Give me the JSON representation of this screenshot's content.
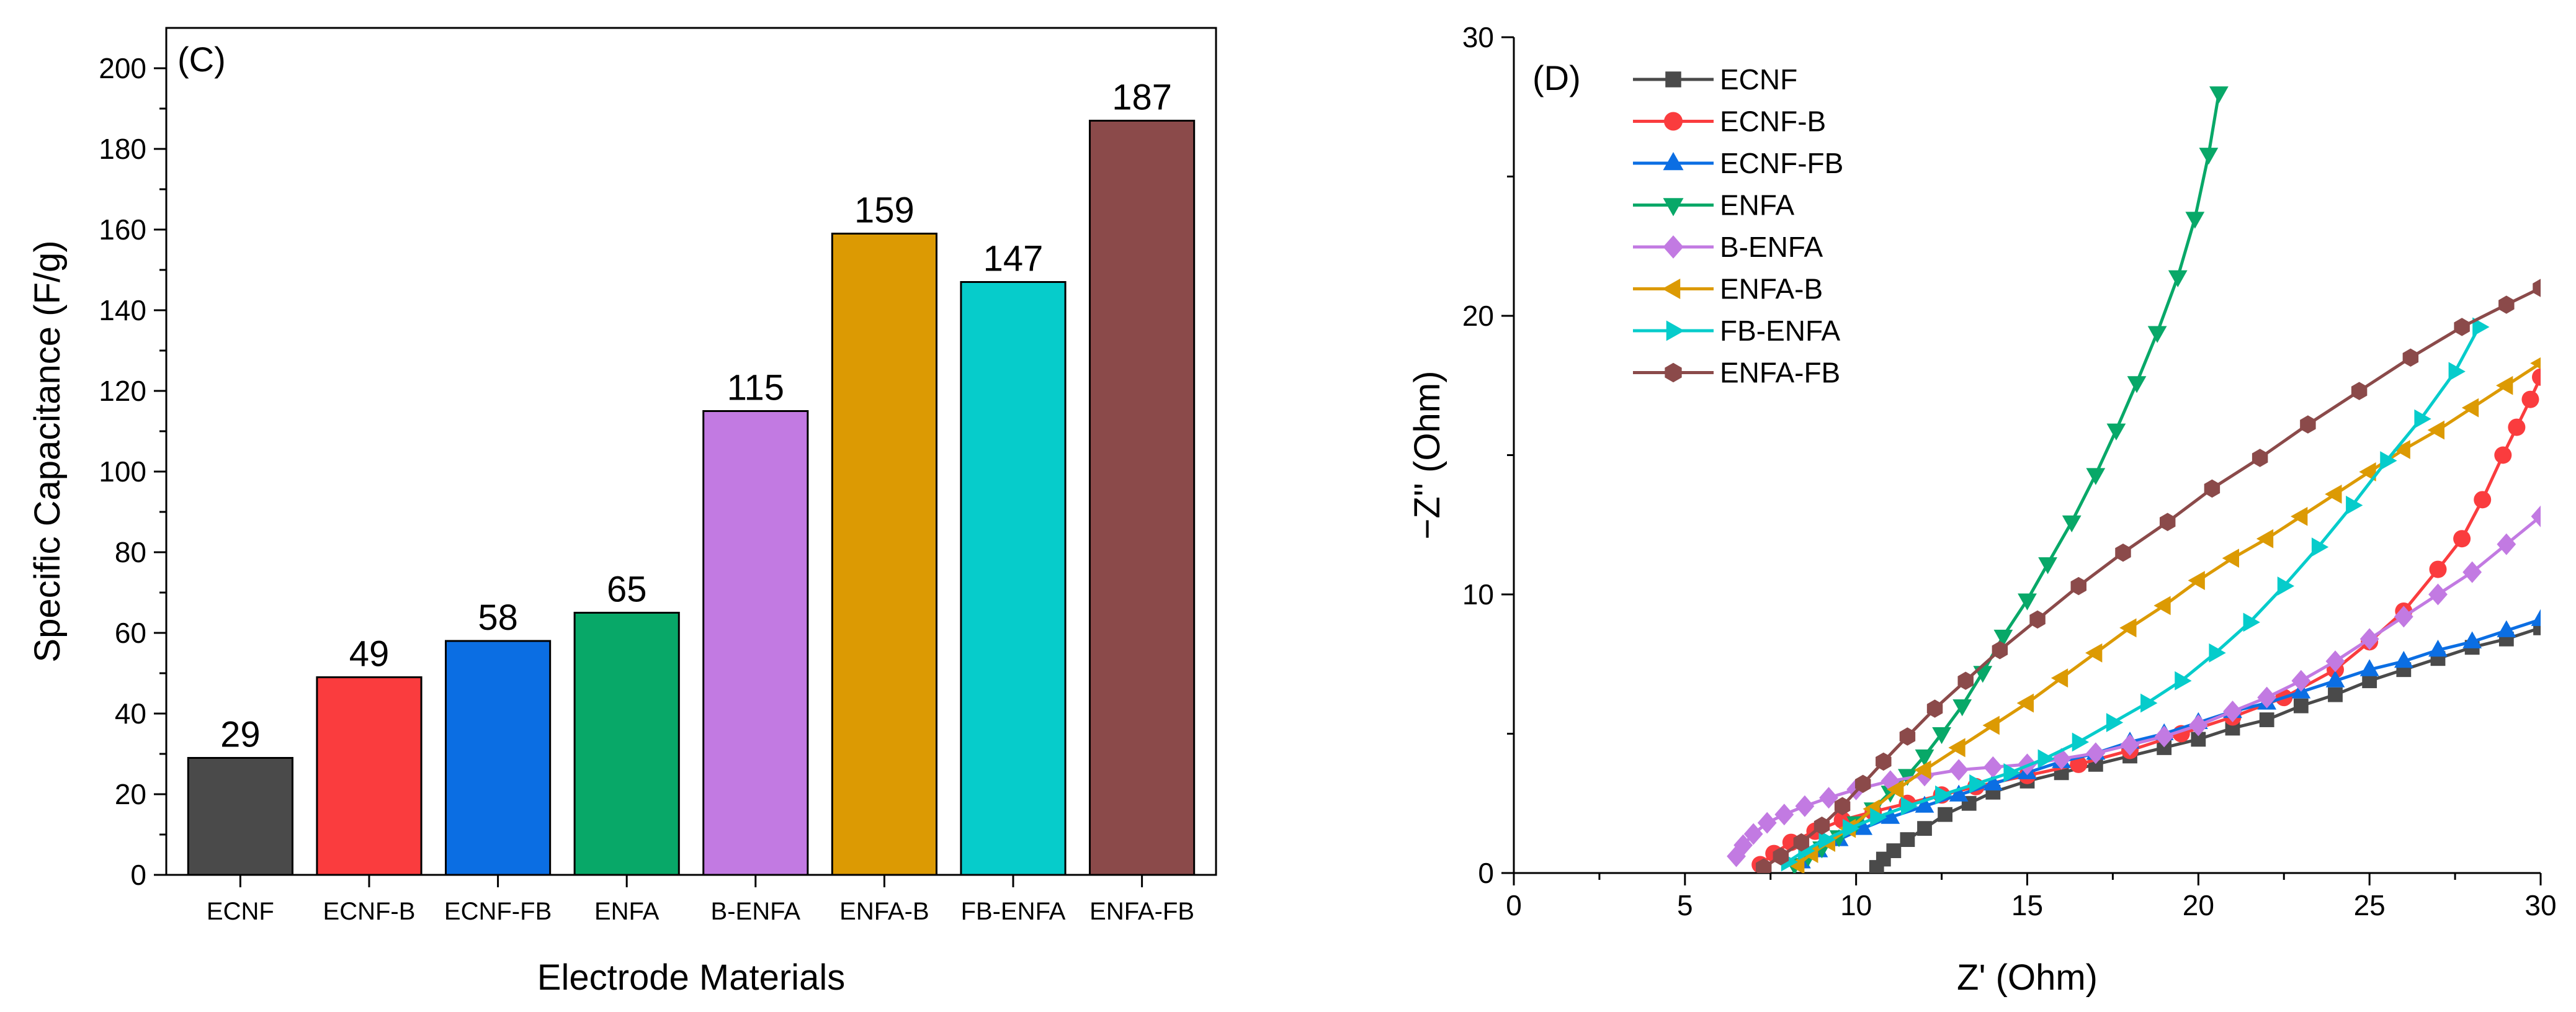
{
  "chart_data": [
    {
      "type": "bar",
      "panel_label": "(C)",
      "title": "",
      "xlabel": "Electrode Materials",
      "ylabel": "Specific Capacitance (F/g)",
      "ylim": [
        0,
        210
      ],
      "yticks": [
        0,
        20,
        40,
        60,
        80,
        100,
        120,
        140,
        160,
        180,
        200
      ],
      "grid": false,
      "categories": [
        "ECNF",
        "ECNF-B",
        "ECNF-FB",
        "ENFA",
        "B-ENFA",
        "ENFA-B",
        "FB-ENFA",
        "ENFA-FB"
      ],
      "values": [
        29,
        49,
        58,
        65,
        115,
        159,
        147,
        187
      ],
      "data_labels": [
        "29",
        "49",
        "58",
        "65",
        "115",
        "159",
        "147",
        "187"
      ],
      "colors": [
        "#4a4a4a",
        "#fa3c3e",
        "#0b6ee3",
        "#08a868",
        "#c27ae2",
        "#dc9a03",
        "#06cccb",
        "#8b4a4a"
      ]
    },
    {
      "type": "line",
      "panel_label": "(D)",
      "title": "",
      "xlabel": "Z' (Ohm)",
      "ylabel": "−Z'' (Ohm)",
      "xlim": [
        0,
        30
      ],
      "ylim": [
        0,
        30
      ],
      "xticks": [
        0,
        5,
        10,
        15,
        20,
        25,
        30
      ],
      "yticks": [
        0,
        10,
        20,
        30
      ],
      "grid": false,
      "legend_position": "top-left",
      "series": [
        {
          "name": "ECNF",
          "color": "#4a4a4a",
          "marker": "square",
          "x": [
            10.6,
            10.8,
            11.1,
            11.5,
            12,
            12.6,
            13.3,
            14,
            15,
            16,
            17,
            18,
            19,
            20,
            21,
            22,
            23,
            24,
            25,
            26,
            27,
            28,
            29,
            30
          ],
          "y": [
            0.2,
            0.5,
            0.8,
            1.2,
            1.6,
            2.1,
            2.5,
            2.9,
            3.3,
            3.6,
            3.9,
            4.2,
            4.5,
            4.8,
            5.2,
            5.5,
            6.0,
            6.4,
            6.9,
            7.3,
            7.7,
            8.1,
            8.4,
            8.8
          ]
        },
        {
          "name": "ECNF-B",
          "color": "#fa3c3e",
          "marker": "circle",
          "x": [
            7.2,
            7.6,
            8.1,
            8.8,
            9.6,
            10.5,
            11.5,
            12.5,
            13.5,
            15,
            16.5,
            18,
            19.5,
            21,
            22.5,
            24,
            25,
            26,
            27,
            27.7,
            28.3,
            28.9,
            29.3,
            29.7,
            30
          ],
          "y": [
            0.3,
            0.7,
            1.1,
            1.5,
            1.9,
            2.2,
            2.5,
            2.8,
            3.1,
            3.5,
            3.9,
            4.4,
            5.0,
            5.6,
            6.3,
            7.3,
            8.3,
            9.4,
            10.9,
            12.0,
            13.4,
            15.0,
            16.0,
            17.0,
            17.8
          ]
        },
        {
          "name": "ECNF-FB",
          "color": "#0b6ee3",
          "marker": "triangle-up",
          "x": [
            8.4,
            8.9,
            9.5,
            10.2,
            11,
            12,
            13,
            14,
            15,
            16,
            17,
            18,
            19,
            20,
            21,
            22,
            23,
            24,
            25,
            26,
            27,
            28,
            29,
            30
          ],
          "y": [
            0.4,
            0.8,
            1.2,
            1.6,
            2.0,
            2.4,
            2.8,
            3.2,
            3.6,
            4.0,
            4.3,
            4.7,
            5.0,
            5.4,
            5.8,
            6.1,
            6.5,
            6.9,
            7.3,
            7.6,
            8.0,
            8.3,
            8.7,
            9.1
          ]
        },
        {
          "name": "ENFA",
          "color": "#08a868",
          "marker": "triangle-down",
          "x": [
            8.2,
            8.6,
            9.0,
            9.5,
            10.0,
            10.5,
            11.0,
            11.5,
            12.0,
            12.5,
            13.1,
            13.7,
            14.3,
            15.0,
            15.6,
            16.3,
            17.0,
            17.6,
            18.2,
            18.8,
            19.4,
            19.9,
            20.3,
            20.6
          ],
          "y": [
            0.3,
            0.6,
            0.9,
            1.3,
            1.8,
            2.3,
            2.9,
            3.5,
            4.2,
            5.0,
            6.0,
            7.2,
            8.5,
            9.8,
            11.1,
            12.6,
            14.3,
            15.9,
            17.6,
            19.4,
            21.4,
            23.5,
            25.8,
            28.0
          ]
        },
        {
          "name": "B-ENFA",
          "color": "#c27ae2",
          "marker": "diamond",
          "x": [
            6.5,
            6.7,
            7.0,
            7.4,
            7.9,
            8.5,
            9.2,
            10.0,
            11,
            12,
            13,
            14,
            15,
            16,
            17,
            18,
            19,
            20,
            21,
            22,
            23,
            24,
            25,
            26,
            27,
            28,
            29,
            30
          ],
          "y": [
            0.6,
            1.0,
            1.4,
            1.8,
            2.1,
            2.4,
            2.7,
            3.0,
            3.3,
            3.5,
            3.7,
            3.8,
            3.9,
            4.1,
            4.3,
            4.6,
            4.9,
            5.3,
            5.8,
            6.3,
            6.9,
            7.6,
            8.4,
            9.2,
            10.0,
            10.8,
            11.8,
            12.8
          ]
        },
        {
          "name": "ENFA-B",
          "color": "#dc9a03",
          "marker": "triangle-left",
          "x": [
            8.3,
            8.7,
            9.2,
            9.8,
            10.5,
            11.2,
            12,
            13,
            14,
            15,
            16,
            17,
            18,
            19,
            20,
            21,
            22,
            23,
            24,
            25,
            26,
            27,
            28,
            29,
            30
          ],
          "y": [
            0.3,
            0.7,
            1.1,
            1.6,
            2.3,
            3.0,
            3.7,
            4.5,
            5.3,
            6.1,
            7.0,
            7.9,
            8.8,
            9.6,
            10.5,
            11.3,
            12.0,
            12.8,
            13.6,
            14.4,
            15.2,
            15.9,
            16.7,
            17.5,
            18.3
          ]
        },
        {
          "name": "FB-ENFA",
          "color": "#06cccb",
          "marker": "triangle-right",
          "x": [
            8.0,
            8.5,
            9.1,
            9.8,
            10.6,
            11.5,
            12.5,
            13.5,
            14.5,
            15.5,
            16.5,
            17.5,
            18.5,
            19.5,
            20.5,
            21.5,
            22.5,
            23.5,
            24.5,
            25.5,
            26.5,
            27.5,
            28.2
          ],
          "y": [
            0.4,
            0.8,
            1.2,
            1.6,
            2.0,
            2.4,
            2.8,
            3.2,
            3.6,
            4.1,
            4.7,
            5.4,
            6.1,
            6.9,
            7.9,
            9.0,
            10.3,
            11.7,
            13.2,
            14.8,
            16.3,
            18.0,
            19.6
          ]
        },
        {
          "name": "ENFA-FB",
          "color": "#8b4a4a",
          "marker": "hexagon",
          "x": [
            7.3,
            7.8,
            8.4,
            9.0,
            9.6,
            10.2,
            10.8,
            11.5,
            12.3,
            13.2,
            14.2,
            15.3,
            16.5,
            17.8,
            19.1,
            20.4,
            21.8,
            23.2,
            24.7,
            26.2,
            27.7,
            29.0,
            30
          ],
          "y": [
            0.2,
            0.6,
            1.1,
            1.7,
            2.4,
            3.2,
            4.0,
            4.9,
            5.9,
            6.9,
            8.0,
            9.1,
            10.3,
            11.5,
            12.6,
            13.8,
            14.9,
            16.1,
            17.3,
            18.5,
            19.6,
            20.4,
            21.0
          ]
        }
      ]
    }
  ]
}
